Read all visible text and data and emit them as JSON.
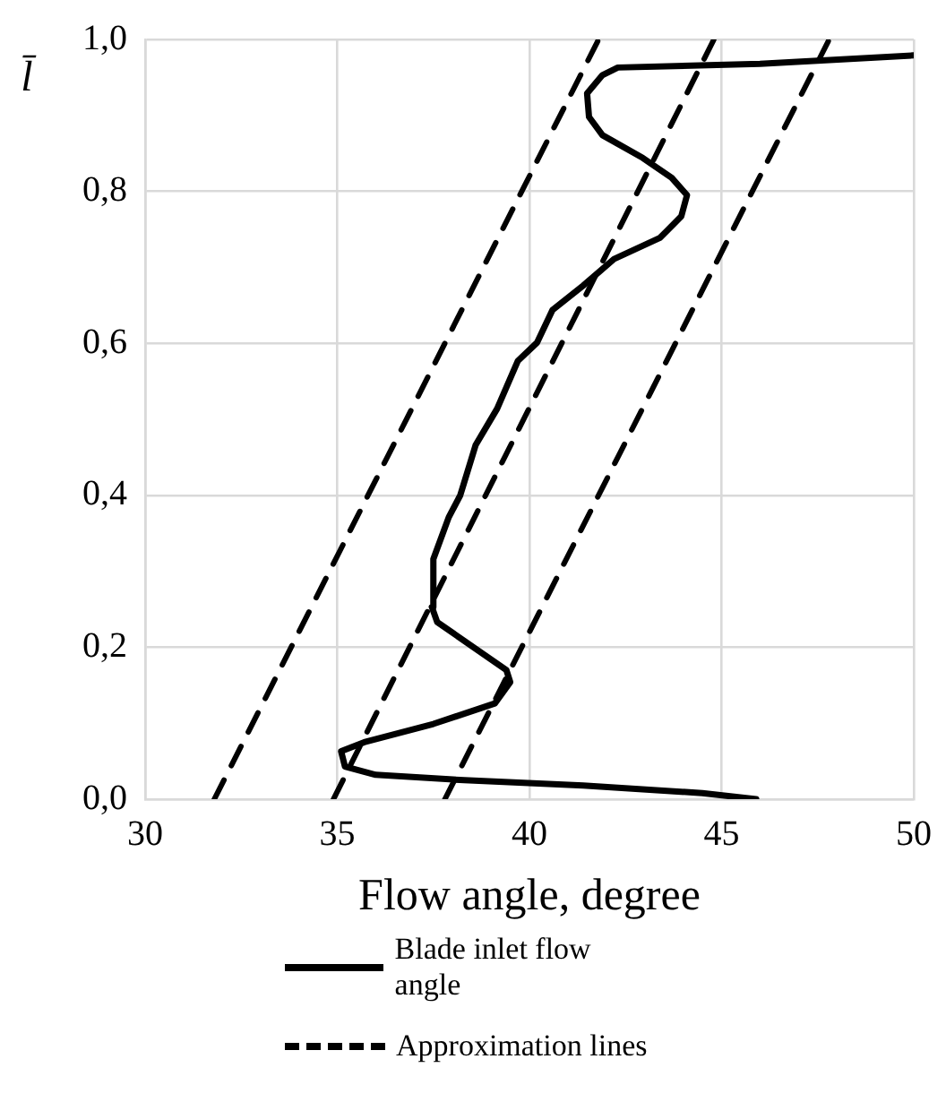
{
  "chart_data": {
    "type": "line",
    "xlabel": "Flow angle, degree",
    "ylabel": "l̄",
    "xlim": [
      30,
      50
    ],
    "xticks": [
      30,
      35,
      40,
      45,
      50
    ],
    "ylim": [
      0,
      1
    ],
    "yticks": [
      {
        "value": 0,
        "label": "0,0"
      },
      {
        "value": 0.2,
        "label": "0,2"
      },
      {
        "value": 0.4,
        "label": "0,4"
      },
      {
        "value": 0.6,
        "label": "0,6"
      },
      {
        "value": 0.8,
        "label": "0,8"
      },
      {
        "value": 1,
        "label": "1,0"
      }
    ],
    "grid": true,
    "legend": "bottom",
    "marker": "none",
    "series": [
      {
        "name": "Blade inlet flow angle",
        "color": "#000000",
        "line_style": "solid",
        "x": [
          45.9,
          44.5,
          41.4,
          38.3,
          36.0,
          35.2,
          35.1,
          35.7,
          37.5,
          39.1,
          39.5,
          39.4,
          37.6,
          37.46,
          37.5,
          37.9,
          38.2,
          38.6,
          39.16,
          39.7,
          40.2,
          40.6,
          41.4,
          42.2,
          43.4,
          43.95,
          44.1,
          43.7,
          42.95,
          41.9,
          41.55,
          41.5,
          41.9,
          42.3,
          46.0,
          50
        ],
        "values": [
          0,
          0.008,
          0.018,
          0.025,
          0.032,
          0.043,
          0.063,
          0.075,
          0.099,
          0.126,
          0.154,
          0.17,
          0.233,
          0.253,
          0.316,
          0.371,
          0.4,
          0.466,
          0.514,
          0.577,
          0.601,
          0.644,
          0.676,
          0.711,
          0.739,
          0.767,
          0.795,
          0.818,
          0.844,
          0.874,
          0.898,
          0.929,
          0.953,
          0.963,
          0.968,
          0.979
        ]
      },
      {
        "name": "Approximation lines",
        "color": "#000000",
        "line_style": "dashed",
        "x": [
          31.8,
          41.8
        ],
        "values": [
          0,
          1
        ]
      },
      {
        "color": "#000000",
        "line_style": "dashed",
        "x": [
          34.9,
          44.8
        ],
        "values": [
          0,
          1
        ]
      },
      {
        "color": "#000000",
        "line_style": "dashed",
        "x": [
          37.8,
          47.8
        ],
        "values": [
          0,
          1
        ]
      }
    ]
  }
}
